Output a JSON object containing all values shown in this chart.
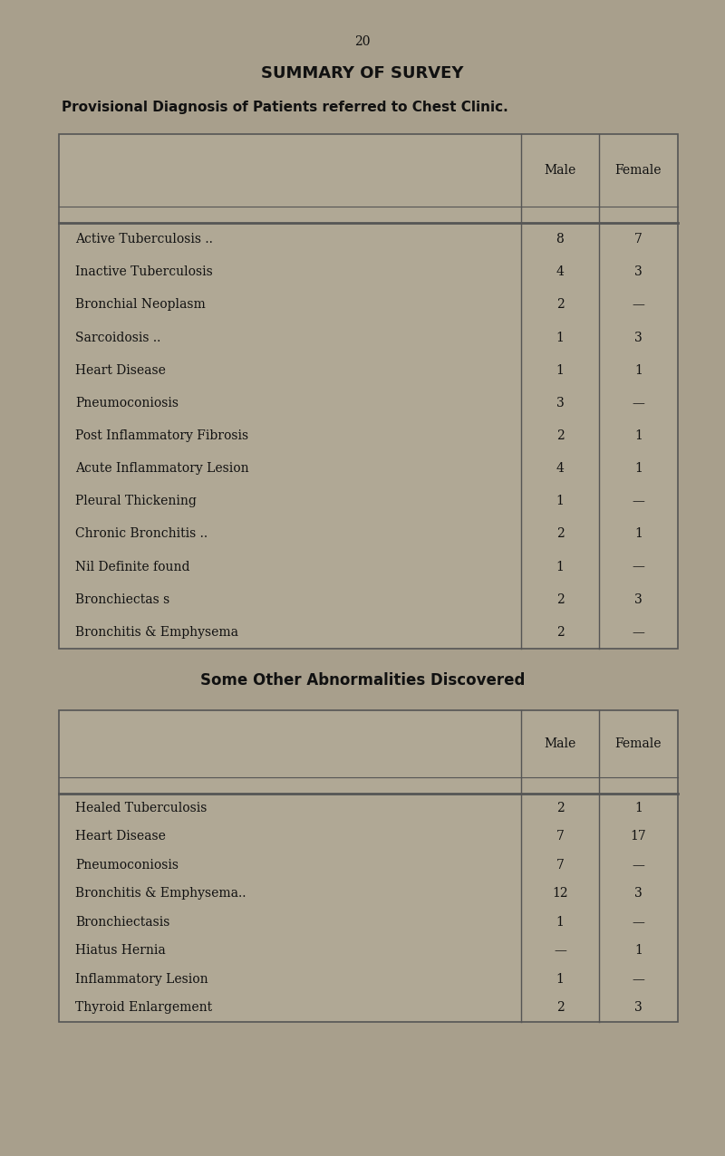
{
  "page_number": "20",
  "title": "SUMMARY OF SURVEY",
  "subtitle": "Provisional Diagnosis of Patients referred to Chest Clinic.",
  "table1_rows": [
    [
      "Active Tuberculosis ..",
      "8",
      "7"
    ],
    [
      "Inactive Tuberculosis",
      "4",
      "3"
    ],
    [
      "Bronchial Neoplasm",
      "2",
      "—"
    ],
    [
      "Sarcoidosis ..",
      "1",
      "3"
    ],
    [
      "Heart Disease",
      "1",
      "1"
    ],
    [
      "Pneumoconiosis",
      "3",
      "—"
    ],
    [
      "Post Inflammatory Fibrosis",
      "2",
      "1"
    ],
    [
      "Acute Inflammatory Lesion",
      "4",
      "1"
    ],
    [
      "Pleural Thickening",
      "1",
      "—"
    ],
    [
      "Chronic Bronchitis ..",
      "2",
      "1"
    ],
    [
      "Nil Definite found",
      "1",
      "—"
    ],
    [
      "Bronchiectas s",
      "2",
      "3"
    ],
    [
      "Bronchitis & Emphysema",
      "2",
      "—"
    ]
  ],
  "table2_title": "Some Other Abnormalities Discovered",
  "table2_rows": [
    [
      "Healed Tuberculosis",
      "2",
      "1"
    ],
    [
      "Heart Disease",
      "7",
      "17"
    ],
    [
      "Pneumoconiosis",
      "7",
      "—"
    ],
    [
      "Bronchitis & Emphysema..",
      "12",
      "3"
    ],
    [
      "Bronchiectasis",
      "1",
      "—"
    ],
    [
      "Hiatus Hernia",
      "—",
      "1"
    ],
    [
      "Inflammatory Lesion",
      "1",
      "—"
    ],
    [
      "Thyroid Enlargement",
      "2",
      "3"
    ]
  ],
  "col_headers": [
    "Male",
    "Female"
  ],
  "bg_color": "#a89f8c",
  "table_bg": "#b0a895",
  "text_color": "#111111",
  "line_color": "#555555",
  "font_size_page": 10,
  "font_size_title": 13,
  "font_size_subtitle": 11,
  "font_size_header": 10,
  "font_size_table": 10
}
